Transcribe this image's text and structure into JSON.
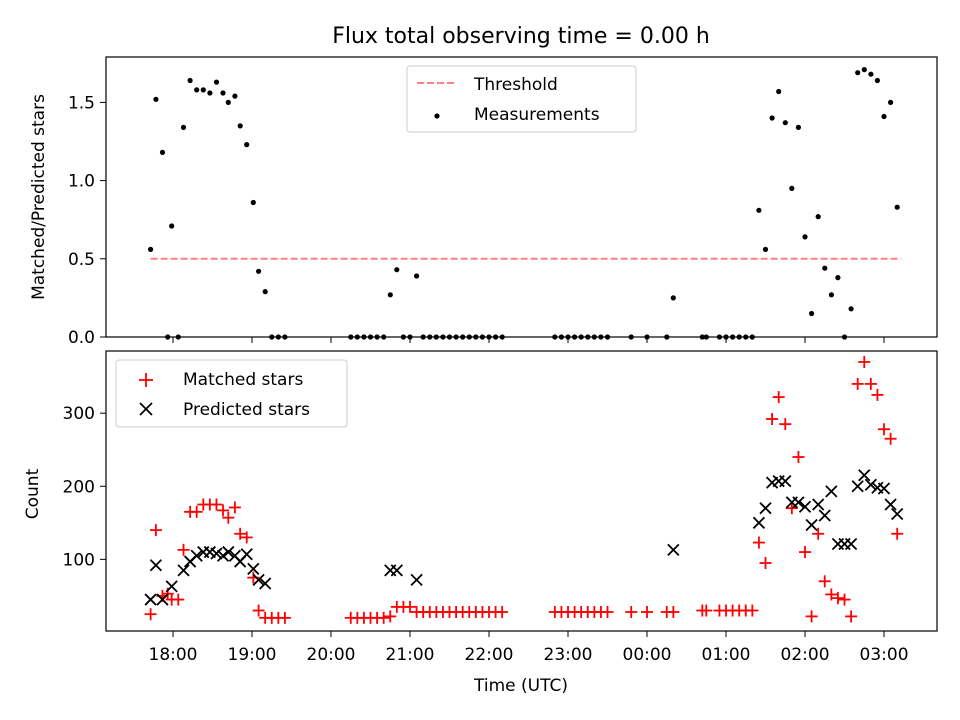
{
  "chart_data": [
    {
      "type": "scatter",
      "title": "Flux total observing time = 0.00 h",
      "xlabel": "",
      "ylabel": "Matched/Predicted stars",
      "ylim": [
        0,
        1.8
      ],
      "yticks": [
        "0.0",
        "0.5",
        "1.0",
        "1.5"
      ],
      "grid": false,
      "legend_position": "top-center",
      "legend": [
        "Threshold",
        "Measurements"
      ],
      "threshold": {
        "name": "Threshold",
        "value": 0.5,
        "x_start": "17:43",
        "x_end": "03:13",
        "color": "#ff8080"
      },
      "series": [
        {
          "name": "Measurements",
          "color": "#000000",
          "points": [
            [
              "17:43",
              0.56
            ],
            [
              "17:47",
              1.52
            ],
            [
              "17:52",
              1.18
            ],
            [
              "17:56",
              0.0
            ],
            [
              "17:59",
              0.71
            ],
            [
              "18:04",
              0.0
            ],
            [
              "18:08",
              1.34
            ],
            [
              "18:13",
              1.64
            ],
            [
              "18:18",
              1.58
            ],
            [
              "18:23",
              1.58
            ],
            [
              "18:28",
              1.56
            ],
            [
              "18:33",
              1.63
            ],
            [
              "18:38",
              1.56
            ],
            [
              "18:42",
              1.5
            ],
            [
              "18:47",
              1.54
            ],
            [
              "18:51",
              1.35
            ],
            [
              "18:56",
              1.23
            ],
            [
              "19:01",
              0.86
            ],
            [
              "19:05",
              0.42
            ],
            [
              "19:10",
              0.29
            ],
            [
              "19:15",
              0.0
            ],
            [
              "19:20",
              0.0
            ],
            [
              "19:25",
              0.0
            ],
            [
              "20:15",
              0.0
            ],
            [
              "20:20",
              0.0
            ],
            [
              "20:25",
              0.0
            ],
            [
              "20:30",
              0.0
            ],
            [
              "20:35",
              0.0
            ],
            [
              "20:40",
              0.0
            ],
            [
              "20:45",
              0.27
            ],
            [
              "20:50",
              0.43
            ],
            [
              "20:55",
              0.0
            ],
            [
              "21:00",
              0.0
            ],
            [
              "21:05",
              0.39
            ],
            [
              "21:10",
              0.0
            ],
            [
              "21:15",
              0.0
            ],
            [
              "21:20",
              0.0
            ],
            [
              "21:25",
              0.0
            ],
            [
              "21:30",
              0.0
            ],
            [
              "21:35",
              0.0
            ],
            [
              "21:40",
              0.0
            ],
            [
              "21:45",
              0.0
            ],
            [
              "21:50",
              0.0
            ],
            [
              "21:55",
              0.0
            ],
            [
              "22:00",
              0.0
            ],
            [
              "22:05",
              0.0
            ],
            [
              "22:10",
              0.0
            ],
            [
              "22:50",
              0.0
            ],
            [
              "22:55",
              0.0
            ],
            [
              "23:00",
              0.0
            ],
            [
              "23:05",
              0.0
            ],
            [
              "23:10",
              0.0
            ],
            [
              "23:15",
              0.0
            ],
            [
              "23:20",
              0.0
            ],
            [
              "23:25",
              0.0
            ],
            [
              "23:30",
              0.0
            ],
            [
              "23:48",
              0.0
            ],
            [
              "00:00",
              0.0
            ],
            [
              "00:15",
              0.0
            ],
            [
              "00:20",
              0.25
            ],
            [
              "00:42",
              0.0
            ],
            [
              "00:45",
              0.0
            ],
            [
              "00:55",
              0.0
            ],
            [
              "01:00",
              0.0
            ],
            [
              "01:05",
              0.0
            ],
            [
              "01:10",
              0.0
            ],
            [
              "01:15",
              0.0
            ],
            [
              "01:20",
              0.0
            ],
            [
              "01:25",
              0.81
            ],
            [
              "01:30",
              0.56
            ],
            [
              "01:35",
              1.4
            ],
            [
              "01:40",
              1.57
            ],
            [
              "01:45",
              1.37
            ],
            [
              "01:50",
              0.95
            ],
            [
              "01:55",
              1.34
            ],
            [
              "02:00",
              0.64
            ],
            [
              "02:05",
              0.15
            ],
            [
              "02:10",
              0.77
            ],
            [
              "02:15",
              0.44
            ],
            [
              "02:20",
              0.27
            ],
            [
              "02:25",
              0.38
            ],
            [
              "02:30",
              0.0
            ],
            [
              "02:35",
              0.18
            ],
            [
              "02:40",
              1.69
            ],
            [
              "02:45",
              1.71
            ],
            [
              "02:50",
              1.68
            ],
            [
              "02:55",
              1.64
            ],
            [
              "03:00",
              1.41
            ],
            [
              "03:05",
              1.5
            ],
            [
              "03:10",
              0.83
            ]
          ]
        }
      ]
    },
    {
      "type": "scatter",
      "title": "",
      "xlabel": "Time (UTC)",
      "ylabel": "Count",
      "ylim": [
        2,
        385
      ],
      "yticks": [
        "100",
        "200",
        "300"
      ],
      "xticks": [
        "18:00",
        "19:00",
        "20:00",
        "21:00",
        "22:00",
        "23:00",
        "00:00",
        "01:00",
        "02:00",
        "03:00"
      ],
      "grid": false,
      "legend_position": "top-left",
      "legend": [
        "Matched stars",
        "Predicted stars"
      ],
      "series": [
        {
          "name": "Matched stars",
          "marker": "+",
          "color": "#ff0000",
          "points": [
            [
              "17:43",
              25
            ],
            [
              "17:47",
              140
            ],
            [
              "17:52",
              50
            ],
            [
              "17:56",
              53
            ],
            [
              "17:59",
              45
            ],
            [
              "18:04",
              45
            ],
            [
              "18:08",
              113
            ],
            [
              "18:13",
              165
            ],
            [
              "18:18",
              165
            ],
            [
              "18:23",
              175
            ],
            [
              "18:28",
              175
            ],
            [
              "18:33",
              175
            ],
            [
              "18:38",
              167
            ],
            [
              "18:42",
              157
            ],
            [
              "18:47",
              171
            ],
            [
              "18:51",
              135
            ],
            [
              "18:56",
              130
            ],
            [
              "19:01",
              75
            ],
            [
              "19:05",
              30
            ],
            [
              "19:10",
              20
            ],
            [
              "19:15",
              20
            ],
            [
              "19:20",
              20
            ],
            [
              "19:25",
              20
            ],
            [
              "20:15",
              20
            ],
            [
              "20:20",
              20
            ],
            [
              "20:25",
              20
            ],
            [
              "20:30",
              20
            ],
            [
              "20:35",
              20
            ],
            [
              "20:40",
              20
            ],
            [
              "20:45",
              22
            ],
            [
              "20:50",
              35
            ],
            [
              "20:55",
              35
            ],
            [
              "21:00",
              35
            ],
            [
              "21:05",
              28
            ],
            [
              "21:10",
              28
            ],
            [
              "21:15",
              28
            ],
            [
              "21:20",
              28
            ],
            [
              "21:25",
              28
            ],
            [
              "21:30",
              28
            ],
            [
              "21:35",
              28
            ],
            [
              "21:40",
              28
            ],
            [
              "21:45",
              28
            ],
            [
              "21:50",
              28
            ],
            [
              "21:55",
              28
            ],
            [
              "22:00",
              28
            ],
            [
              "22:05",
              28
            ],
            [
              "22:10",
              28
            ],
            [
              "22:50",
              28
            ],
            [
              "22:55",
              28
            ],
            [
              "23:00",
              28
            ],
            [
              "23:05",
              28
            ],
            [
              "23:10",
              28
            ],
            [
              "23:15",
              28
            ],
            [
              "23:20",
              28
            ],
            [
              "23:25",
              28
            ],
            [
              "23:30",
              28
            ],
            [
              "23:48",
              28
            ],
            [
              "00:00",
              28
            ],
            [
              "00:15",
              28
            ],
            [
              "00:20",
              28
            ],
            [
              "00:42",
              30
            ],
            [
              "00:45",
              30
            ],
            [
              "00:55",
              30
            ],
            [
              "01:00",
              30
            ],
            [
              "01:05",
              30
            ],
            [
              "01:10",
              30
            ],
            [
              "01:15",
              30
            ],
            [
              "01:20",
              30
            ],
            [
              "01:25",
              123
            ],
            [
              "01:30",
              95
            ],
            [
              "01:35",
              292
            ],
            [
              "01:40",
              322
            ],
            [
              "01:45",
              285
            ],
            [
              "01:50",
              170
            ],
            [
              "01:55",
              240
            ],
            [
              "02:00",
              110
            ],
            [
              "02:05",
              22
            ],
            [
              "02:10",
              135
            ],
            [
              "02:15",
              70
            ],
            [
              "02:20",
              52
            ],
            [
              "02:25",
              47
            ],
            [
              "02:30",
              45
            ],
            [
              "02:35",
              22
            ],
            [
              "02:40",
              340
            ],
            [
              "02:45",
              370
            ],
            [
              "02:50",
              340
            ],
            [
              "02:55",
              325
            ],
            [
              "03:00",
              278
            ],
            [
              "03:05",
              265
            ],
            [
              "03:10",
              135
            ]
          ]
        },
        {
          "name": "Predicted stars",
          "marker": "x",
          "color": "#000000",
          "points": [
            [
              "17:43",
              45
            ],
            [
              "17:47",
              92
            ],
            [
              "17:52",
              45
            ],
            [
              "17:59",
              63
            ],
            [
              "18:08",
              85
            ],
            [
              "18:13",
              97
            ],
            [
              "18:18",
              105
            ],
            [
              "18:23",
              110
            ],
            [
              "18:28",
              110
            ],
            [
              "18:33",
              108
            ],
            [
              "18:38",
              105
            ],
            [
              "18:42",
              110
            ],
            [
              "18:47",
              105
            ],
            [
              "18:51",
              97
            ],
            [
              "18:56",
              107
            ],
            [
              "19:01",
              87
            ],
            [
              "19:05",
              72
            ],
            [
              "19:10",
              67
            ],
            [
              "20:45",
              85
            ],
            [
              "20:50",
              85
            ],
            [
              "21:05",
              72
            ],
            [
              "00:20",
              113
            ],
            [
              "01:25",
              150
            ],
            [
              "01:30",
              170
            ],
            [
              "01:35",
              205
            ],
            [
              "01:40",
              207
            ],
            [
              "01:45",
              207
            ],
            [
              "01:50",
              178
            ],
            [
              "01:55",
              178
            ],
            [
              "02:00",
              172
            ],
            [
              "02:05",
              147
            ],
            [
              "02:10",
              175
            ],
            [
              "02:15",
              160
            ],
            [
              "02:20",
              193
            ],
            [
              "02:25",
              121
            ],
            [
              "02:30",
              121
            ],
            [
              "02:35",
              121
            ],
            [
              "02:40",
              200
            ],
            [
              "02:45",
              215
            ],
            [
              "02:50",
              202
            ],
            [
              "02:55",
              198
            ],
            [
              "03:00",
              197
            ],
            [
              "03:05",
              175
            ],
            [
              "03:10",
              162
            ]
          ]
        }
      ]
    }
  ]
}
